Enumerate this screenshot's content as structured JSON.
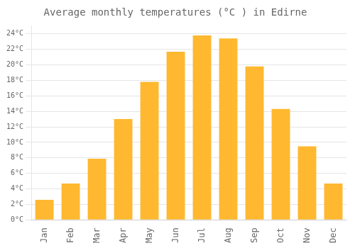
{
  "chart_data": {
    "type": "bar",
    "title": "Average monthly temperatures (°C ) in Edirne",
    "categories": [
      "Jan",
      "Feb",
      "Mar",
      "Apr",
      "May",
      "Jun",
      "Jul",
      "Aug",
      "Sep",
      "Oct",
      "Nov",
      "Dec"
    ],
    "values": [
      2.6,
      4.7,
      7.9,
      13.0,
      17.8,
      21.7,
      23.8,
      23.4,
      19.8,
      14.3,
      9.5,
      4.7
    ],
    "color": "#FFB830",
    "ylim": [
      0,
      25
    ],
    "yticks": [
      {
        "value": 0,
        "label": "0°C"
      },
      {
        "value": 2,
        "label": "2°C"
      },
      {
        "value": 4,
        "label": "4°C"
      },
      {
        "value": 6,
        "label": "6°C"
      },
      {
        "value": 8,
        "label": "8°C"
      },
      {
        "value": 10,
        "label": "10°C"
      },
      {
        "value": 12,
        "label": "12°C"
      },
      {
        "value": 14,
        "label": "14°C"
      },
      {
        "value": 16,
        "label": "16°C"
      },
      {
        "value": 18,
        "label": "18°C"
      },
      {
        "value": 20,
        "label": "20°C"
      },
      {
        "value": 22,
        "label": "22°C"
      },
      {
        "value": 24,
        "label": "24°C"
      }
    ],
    "grid": true
  }
}
